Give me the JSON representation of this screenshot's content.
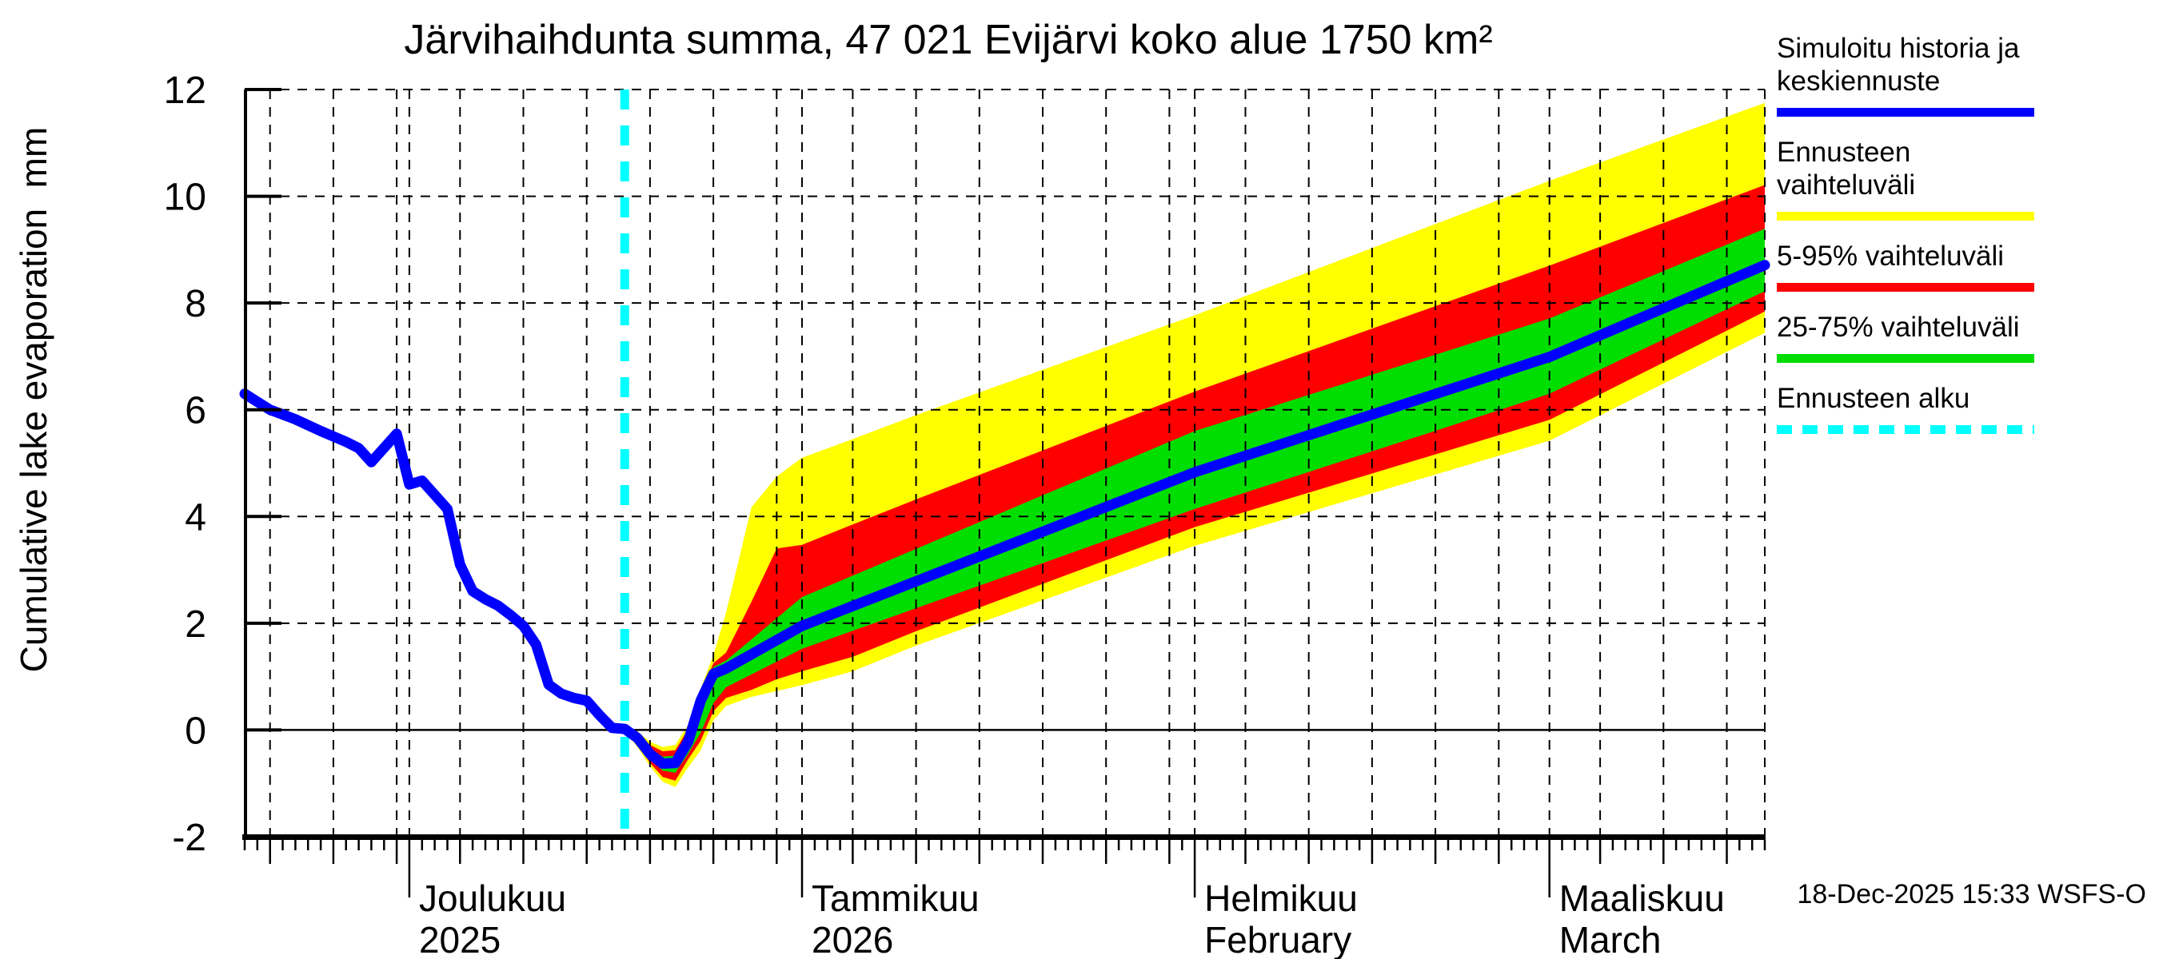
{
  "title": "Järvihaihdunta summa, 47 021 Evijärvi koko alue 1750 km²",
  "timestamp": "18-Dec-2025 15:33 WSFS-O",
  "y_axis": {
    "label": "Cumulative lake evaporation  mm",
    "ticks": [
      -2,
      0,
      2,
      4,
      6,
      8,
      10,
      12
    ]
  },
  "x_axis": {
    "months": [
      {
        "name": "Joulukuu",
        "subname": "2025",
        "date": "2025-12-01"
      },
      {
        "name": "Tammikuu",
        "subname": "2026",
        "date": "2026-01-01"
      },
      {
        "name": "Helmikuu",
        "subname": "February",
        "date": "2026-02-01"
      },
      {
        "name": "Maaliskuu",
        "subname": "March",
        "date": "2026-03-01"
      }
    ]
  },
  "legend": {
    "items": [
      {
        "label": "Simuloitu historia ja keskiennuste",
        "color": "#0000ff",
        "dashed": false
      },
      {
        "label": "Ennusteen vaihteluväli",
        "color": "#ffff00",
        "dashed": false
      },
      {
        "label": "5-95% vaihteluväli",
        "color": "#ff0000",
        "dashed": false
      },
      {
        "label": "25-75% vaihteluväli",
        "color": "#00dd00",
        "dashed": false
      },
      {
        "label": "Ennusteen alku",
        "color": "#00ffff",
        "dashed": true
      }
    ]
  },
  "colors": {
    "history_line": "#0000ff",
    "band_full_range": "#ffff00",
    "band_5_95": "#ff0000",
    "band_25_75": "#00dd00",
    "forecast_start_line": "#00ffff",
    "axis": "#000000"
  },
  "chart_data": {
    "type": "line",
    "title": "Järvihaihdunta summa, 47 021 Evijärvi koko alue 1750 km²",
    "ylabel": "Cumulative lake evaporation mm",
    "ylim": [
      -2,
      12
    ],
    "x_start": "2025-11-18",
    "x_end": "2026-03-18",
    "forecast_start": "2025-12-18",
    "grid": "dashed, vertical every 5 days and at month starts, horizontal every 2 mm, solid line at 0",
    "history": [
      [
        "2025-11-18",
        6.3
      ],
      [
        "2025-11-19",
        6.15
      ],
      [
        "2025-11-20",
        6.0
      ],
      [
        "2025-11-22",
        5.82
      ],
      [
        "2025-11-24",
        5.6
      ],
      [
        "2025-11-26",
        5.4
      ],
      [
        "2025-11-27",
        5.28
      ],
      [
        "2025-11-28",
        5.02
      ],
      [
        "2025-11-30",
        5.55
      ],
      [
        "2025-12-01",
        4.6
      ],
      [
        "2025-12-02",
        4.67
      ],
      [
        "2025-12-04",
        4.14
      ],
      [
        "2025-12-05",
        3.1
      ],
      [
        "2025-12-06",
        2.6
      ],
      [
        "2025-12-07",
        2.45
      ],
      [
        "2025-12-08",
        2.33
      ],
      [
        "2025-12-09",
        2.15
      ],
      [
        "2025-12-10",
        1.95
      ],
      [
        "2025-12-11",
        1.6
      ],
      [
        "2025-12-12",
        0.85
      ],
      [
        "2025-12-13",
        0.68
      ],
      [
        "2025-12-14",
        0.6
      ],
      [
        "2025-12-15",
        0.55
      ],
      [
        "2025-12-16",
        0.28
      ],
      [
        "2025-12-17",
        0.04
      ],
      [
        "2025-12-18",
        0.02
      ]
    ],
    "forecast_median": [
      [
        "2025-12-18",
        0.02
      ],
      [
        "2025-12-19",
        -0.15
      ],
      [
        "2025-12-20",
        -0.45
      ],
      [
        "2025-12-21",
        -0.63
      ],
      [
        "2025-12-22",
        -0.62
      ],
      [
        "2025-12-23",
        -0.22
      ],
      [
        "2025-12-24",
        0.55
      ],
      [
        "2025-12-25",
        1.05
      ],
      [
        "2025-12-26",
        1.15
      ],
      [
        "2026-01-01",
        1.95
      ],
      [
        "2026-02-01",
        4.83
      ],
      [
        "2026-03-01",
        6.99
      ],
      [
        "2026-03-18",
        8.71
      ]
    ],
    "bands": [
      {
        "name": "full-range",
        "legend": "Ennusteen vaihteluväli",
        "color": "#ffff00",
        "points": [
          [
            "2025-12-18",
            -0.02,
            0.05
          ],
          [
            "2025-12-19",
            -0.32,
            -0.02
          ],
          [
            "2025-12-20",
            -0.68,
            -0.22
          ],
          [
            "2025-12-21",
            -0.97,
            -0.32
          ],
          [
            "2025-12-22",
            -1.07,
            -0.28
          ],
          [
            "2025-12-23",
            -0.7,
            0.1
          ],
          [
            "2025-12-24",
            -0.38,
            0.78
          ],
          [
            "2025-12-25",
            0.18,
            1.4
          ],
          [
            "2025-12-26",
            0.45,
            2.2
          ],
          [
            "2025-12-28",
            0.62,
            4.17
          ],
          [
            "2025-12-30",
            0.73,
            4.75
          ],
          [
            "2026-01-01",
            0.84,
            5.1
          ],
          [
            "2026-01-05",
            1.1,
            5.45
          ],
          [
            "2026-01-10",
            1.58,
            5.9
          ],
          [
            "2026-02-01",
            3.45,
            7.77
          ],
          [
            "2026-03-01",
            5.42,
            10.29
          ],
          [
            "2026-03-18",
            7.44,
            11.75
          ]
        ]
      },
      {
        "name": "5-95",
        "legend": "5-95% vaihteluväli",
        "color": "#ff0000",
        "points": [
          [
            "2025-12-18",
            -0.01,
            0.04
          ],
          [
            "2025-12-19",
            -0.26,
            -0.04
          ],
          [
            "2025-12-20",
            -0.62,
            -0.28
          ],
          [
            "2025-12-21",
            -0.88,
            -0.4
          ],
          [
            "2025-12-22",
            -0.95,
            -0.38
          ],
          [
            "2025-12-23",
            -0.55,
            0.02
          ],
          [
            "2025-12-24",
            -0.2,
            0.68
          ],
          [
            "2025-12-25",
            0.35,
            1.25
          ],
          [
            "2025-12-26",
            0.6,
            1.45
          ],
          [
            "2025-12-28",
            0.75,
            2.4
          ],
          [
            "2025-12-30",
            0.95,
            3.4
          ],
          [
            "2026-01-01",
            1.1,
            3.47
          ],
          [
            "2026-01-05",
            1.37,
            3.85
          ],
          [
            "2026-01-10",
            1.85,
            4.32
          ],
          [
            "2026-02-01",
            3.8,
            6.34
          ],
          [
            "2026-03-01",
            5.81,
            8.7
          ],
          [
            "2026-03-18",
            7.84,
            10.21
          ]
        ]
      },
      {
        "name": "25-75",
        "legend": "25-75% vaihteluväli",
        "color": "#00dd00",
        "points": [
          [
            "2025-12-18",
            0.0,
            0.03
          ],
          [
            "2025-12-19",
            -0.22,
            -0.08
          ],
          [
            "2025-12-20",
            -0.55,
            -0.35
          ],
          [
            "2025-12-21",
            -0.76,
            -0.5
          ],
          [
            "2025-12-22",
            -0.8,
            -0.48
          ],
          [
            "2025-12-23",
            -0.45,
            -0.05
          ],
          [
            "2025-12-24",
            -0.05,
            0.62
          ],
          [
            "2025-12-25",
            0.5,
            1.18
          ],
          [
            "2025-12-26",
            0.8,
            1.3
          ],
          [
            "2026-01-01",
            1.52,
            2.49
          ],
          [
            "2026-02-01",
            4.14,
            5.6
          ],
          [
            "2026-03-01",
            6.3,
            7.71
          ],
          [
            "2026-03-18",
            8.22,
            9.39
          ]
        ]
      }
    ]
  }
}
